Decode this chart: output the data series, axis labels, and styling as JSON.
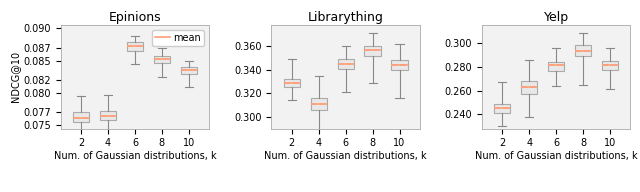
{
  "epinions": {
    "title": "Epinions",
    "ylabel": "NDCG@10",
    "xlabel": "Num. of Gaussian distributions, k",
    "x": [
      2,
      4,
      6,
      8,
      10
    ],
    "mean": [
      0.0762,
      0.0765,
      0.0872,
      0.0852,
      0.0835
    ],
    "q1": [
      0.0755,
      0.0758,
      0.0865,
      0.0847,
      0.083
    ],
    "q3": [
      0.077,
      0.0772,
      0.0878,
      0.0857,
      0.084
    ],
    "whislo": [
      0.073,
      0.073,
      0.0845,
      0.0825,
      0.081
    ],
    "whishi": [
      0.0795,
      0.0797,
      0.0888,
      0.087,
      0.085
    ],
    "ylim": [
      0.0745,
      0.0905
    ],
    "yticks": [
      0.075,
      0.077,
      0.08,
      0.082,
      0.085,
      0.087,
      0.09
    ]
  },
  "librarything": {
    "title": "Librarything",
    "xlabel": "Num. of Gaussian distributions, k",
    "x": [
      2,
      4,
      6,
      8,
      10
    ],
    "mean": [
      0.3285,
      0.311,
      0.345,
      0.357,
      0.344
    ],
    "q1": [
      0.3255,
      0.306,
      0.341,
      0.352,
      0.34
    ],
    "q3": [
      0.332,
      0.316,
      0.349,
      0.36,
      0.348
    ],
    "whislo": [
      0.314,
      0.284,
      0.321,
      0.329,
      0.316
    ],
    "whishi": [
      0.349,
      0.335,
      0.36,
      0.371,
      0.362
    ],
    "ylim": [
      0.29,
      0.378
    ],
    "yticks": [
      0.3,
      0.32,
      0.34,
      0.36
    ]
  },
  "yelp": {
    "title": "Yelp",
    "xlabel": "Num. of Gaussian distributions, k",
    "x": [
      2,
      4,
      6,
      8,
      10
    ],
    "mean": [
      0.245,
      0.263,
      0.281,
      0.293,
      0.281
    ],
    "q1": [
      0.2415,
      0.257,
      0.276,
      0.289,
      0.277
    ],
    "q3": [
      0.249,
      0.268,
      0.284,
      0.298,
      0.285
    ],
    "whislo": [
      0.23,
      0.238,
      0.264,
      0.265,
      0.261
    ],
    "whishi": [
      0.267,
      0.286,
      0.296,
      0.308,
      0.296
    ],
    "ylim": [
      0.228,
      0.315
    ],
    "yticks": [
      0.24,
      0.26,
      0.28,
      0.3
    ]
  },
  "box_color": "#aaaaaa",
  "box_facecolor": "#e8e8e8",
  "mean_color": "#FFA07A",
  "whisker_color": "#888888",
  "cap_color": "#888888",
  "bg_color": "#f2f2f2"
}
